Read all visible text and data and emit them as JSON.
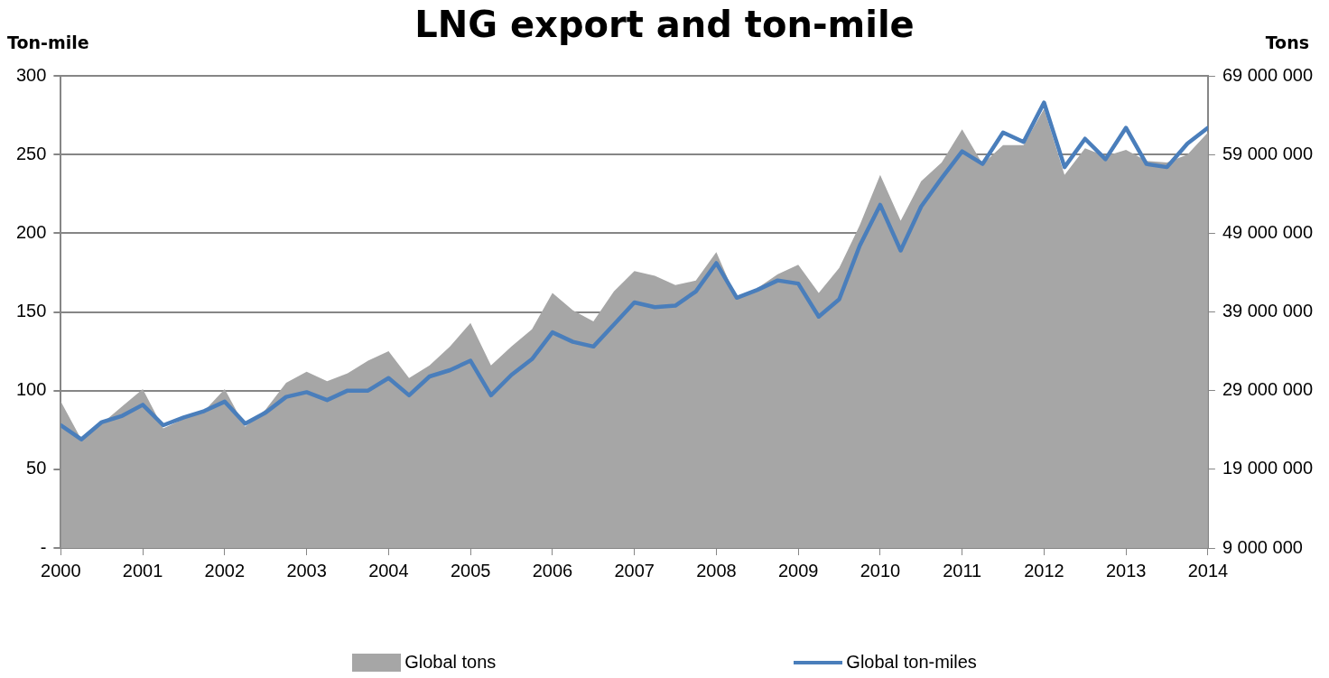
{
  "chart_data": {
    "type": "line",
    "title": "LNG export and ton-mile",
    "ylabel": "Ton-mile",
    "y2label": "Tons",
    "x": [
      2000,
      2000.25,
      2000.5,
      2000.75,
      2001,
      2001.25,
      2001.5,
      2001.75,
      2002,
      2002.25,
      2002.5,
      2002.75,
      2003,
      2003.25,
      2003.5,
      2003.75,
      2004,
      2004.25,
      2004.5,
      2004.75,
      2005,
      2005.25,
      2005.5,
      2005.75,
      2006,
      2006.25,
      2006.5,
      2006.75,
      2007,
      2007.25,
      2007.5,
      2007.75,
      2008,
      2008.25,
      2008.5,
      2008.75,
      2009,
      2009.25,
      2009.5,
      2009.75,
      2010,
      2010.25,
      2010.5,
      2010.75,
      2011,
      2011.25,
      2011.5,
      2011.75,
      2012,
      2012.25,
      2012.5,
      2012.75,
      2013,
      2013.25,
      2013.5,
      2013.75,
      2014
    ],
    "series": [
      {
        "name": "Global tons",
        "type": "area",
        "axis": "y2",
        "color": "#a6a6a6",
        "values": [
          27600000,
          22800000,
          24800000,
          27000000,
          29200000,
          24200000,
          25400000,
          26400000,
          29200000,
          24400000,
          26600000,
          30000000,
          31400000,
          30200000,
          31200000,
          32800000,
          34000000,
          30600000,
          32200000,
          34600000,
          37600000,
          32200000,
          34600000,
          36800000,
          41400000,
          39200000,
          37800000,
          41600000,
          44200000,
          43600000,
          42400000,
          43000000,
          46600000,
          40600000,
          42000000,
          43800000,
          45000000,
          41400000,
          44600000,
          50000000,
          56400000,
          50600000,
          55600000,
          58000000,
          62200000,
          57800000,
          60200000,
          60200000,
          64800000,
          56400000,
          59800000,
          58800000,
          59600000,
          58200000,
          58000000,
          59000000,
          61800000
        ]
      },
      {
        "name": "Global ton-miles",
        "type": "line",
        "color": "#4a7ebb",
        "values": [
          78,
          69,
          80,
          84,
          91,
          78,
          83,
          87,
          93,
          79,
          86,
          96,
          99,
          94,
          100,
          100,
          108,
          97,
          109,
          113,
          119,
          97,
          110,
          120,
          137,
          131,
          128,
          142,
          156,
          153,
          154,
          163,
          181,
          159,
          164,
          170,
          168,
          147,
          158,
          192,
          218,
          189,
          217,
          235,
          252,
          244,
          264,
          258,
          283,
          242,
          260,
          247,
          267,
          244,
          242,
          257,
          267
        ]
      }
    ],
    "xlim": [
      2000,
      2014
    ],
    "xticks": [
      2000,
      2001,
      2002,
      2003,
      2004,
      2005,
      2006,
      2007,
      2008,
      2009,
      2010,
      2011,
      2012,
      2013,
      2014
    ],
    "ylim": [
      0,
      300
    ],
    "yticks": [
      {
        "value": 0,
        "label": "-"
      },
      50,
      100,
      150,
      200,
      250,
      300
    ],
    "y2lim": [
      9000000,
      69000000
    ],
    "y2ticks": [
      {
        "value": 9000000,
        "label": "9 000 000"
      },
      {
        "value": 19000000,
        "label": "19 000 000"
      },
      {
        "value": 29000000,
        "label": "29 000 000"
      },
      {
        "value": 39000000,
        "label": "39 000 000"
      },
      {
        "value": 49000000,
        "label": "49 000 000"
      },
      {
        "value": 59000000,
        "label": "59 000 000"
      },
      {
        "value": 69000000,
        "label": "69 000 000"
      }
    ],
    "grid": "y",
    "legend": "bottom",
    "marker": "none",
    "line_style": "solid"
  }
}
